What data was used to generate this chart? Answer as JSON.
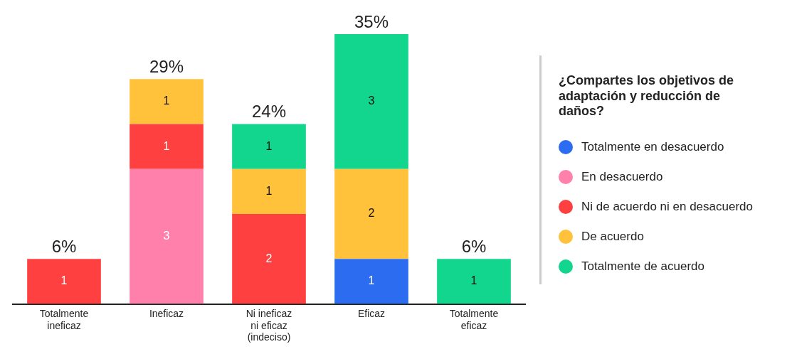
{
  "chart_data": {
    "type": "bar",
    "stacked": true,
    "data_labels": true,
    "legend": "right",
    "legend_title": "¿Compartes los objetivos de adaptación y reducción de daños?",
    "categories": [
      "Totalmente ineficaz",
      "Ineficaz",
      "Ni ineficaz ni eficaz (indeciso)",
      "Eficaz",
      "Totalmente eficaz"
    ],
    "series": [
      {
        "name": "Totalmente en desacuerdo",
        "color": "#2b6cf0",
        "values": [
          null,
          null,
          null,
          1,
          null
        ]
      },
      {
        "name": "En desacuerdo",
        "color": "#ff80aa",
        "values": [
          null,
          3,
          null,
          null,
          null
        ]
      },
      {
        "name": "Ni de acuerdo ni en desacuerdo",
        "color": "#ff4040",
        "values": [
          1,
          1,
          2,
          null,
          null
        ]
      },
      {
        "name": "De acuerdo",
        "color": "#ffc23a",
        "values": [
          null,
          1,
          1,
          2,
          null
        ]
      },
      {
        "name": "Totalmente de acuerdo",
        "color": "#12d68e",
        "values": [
          null,
          null,
          1,
          3,
          1
        ]
      }
    ],
    "annotations": [
      {
        "text": "6%",
        "x": "Totalmente ineficaz",
        "y": 1
      },
      {
        "text": "29%",
        "x": "Ineficaz",
        "y": 5
      },
      {
        "text": "24%",
        "x": "Ni ineficaz ni eficaz (indeciso)",
        "y": 4
      },
      {
        "text": "35%",
        "x": "Eficaz",
        "y": 6
      },
      {
        "text": "6%",
        "x": "Totalmente eficaz",
        "y": 1
      }
    ]
  }
}
